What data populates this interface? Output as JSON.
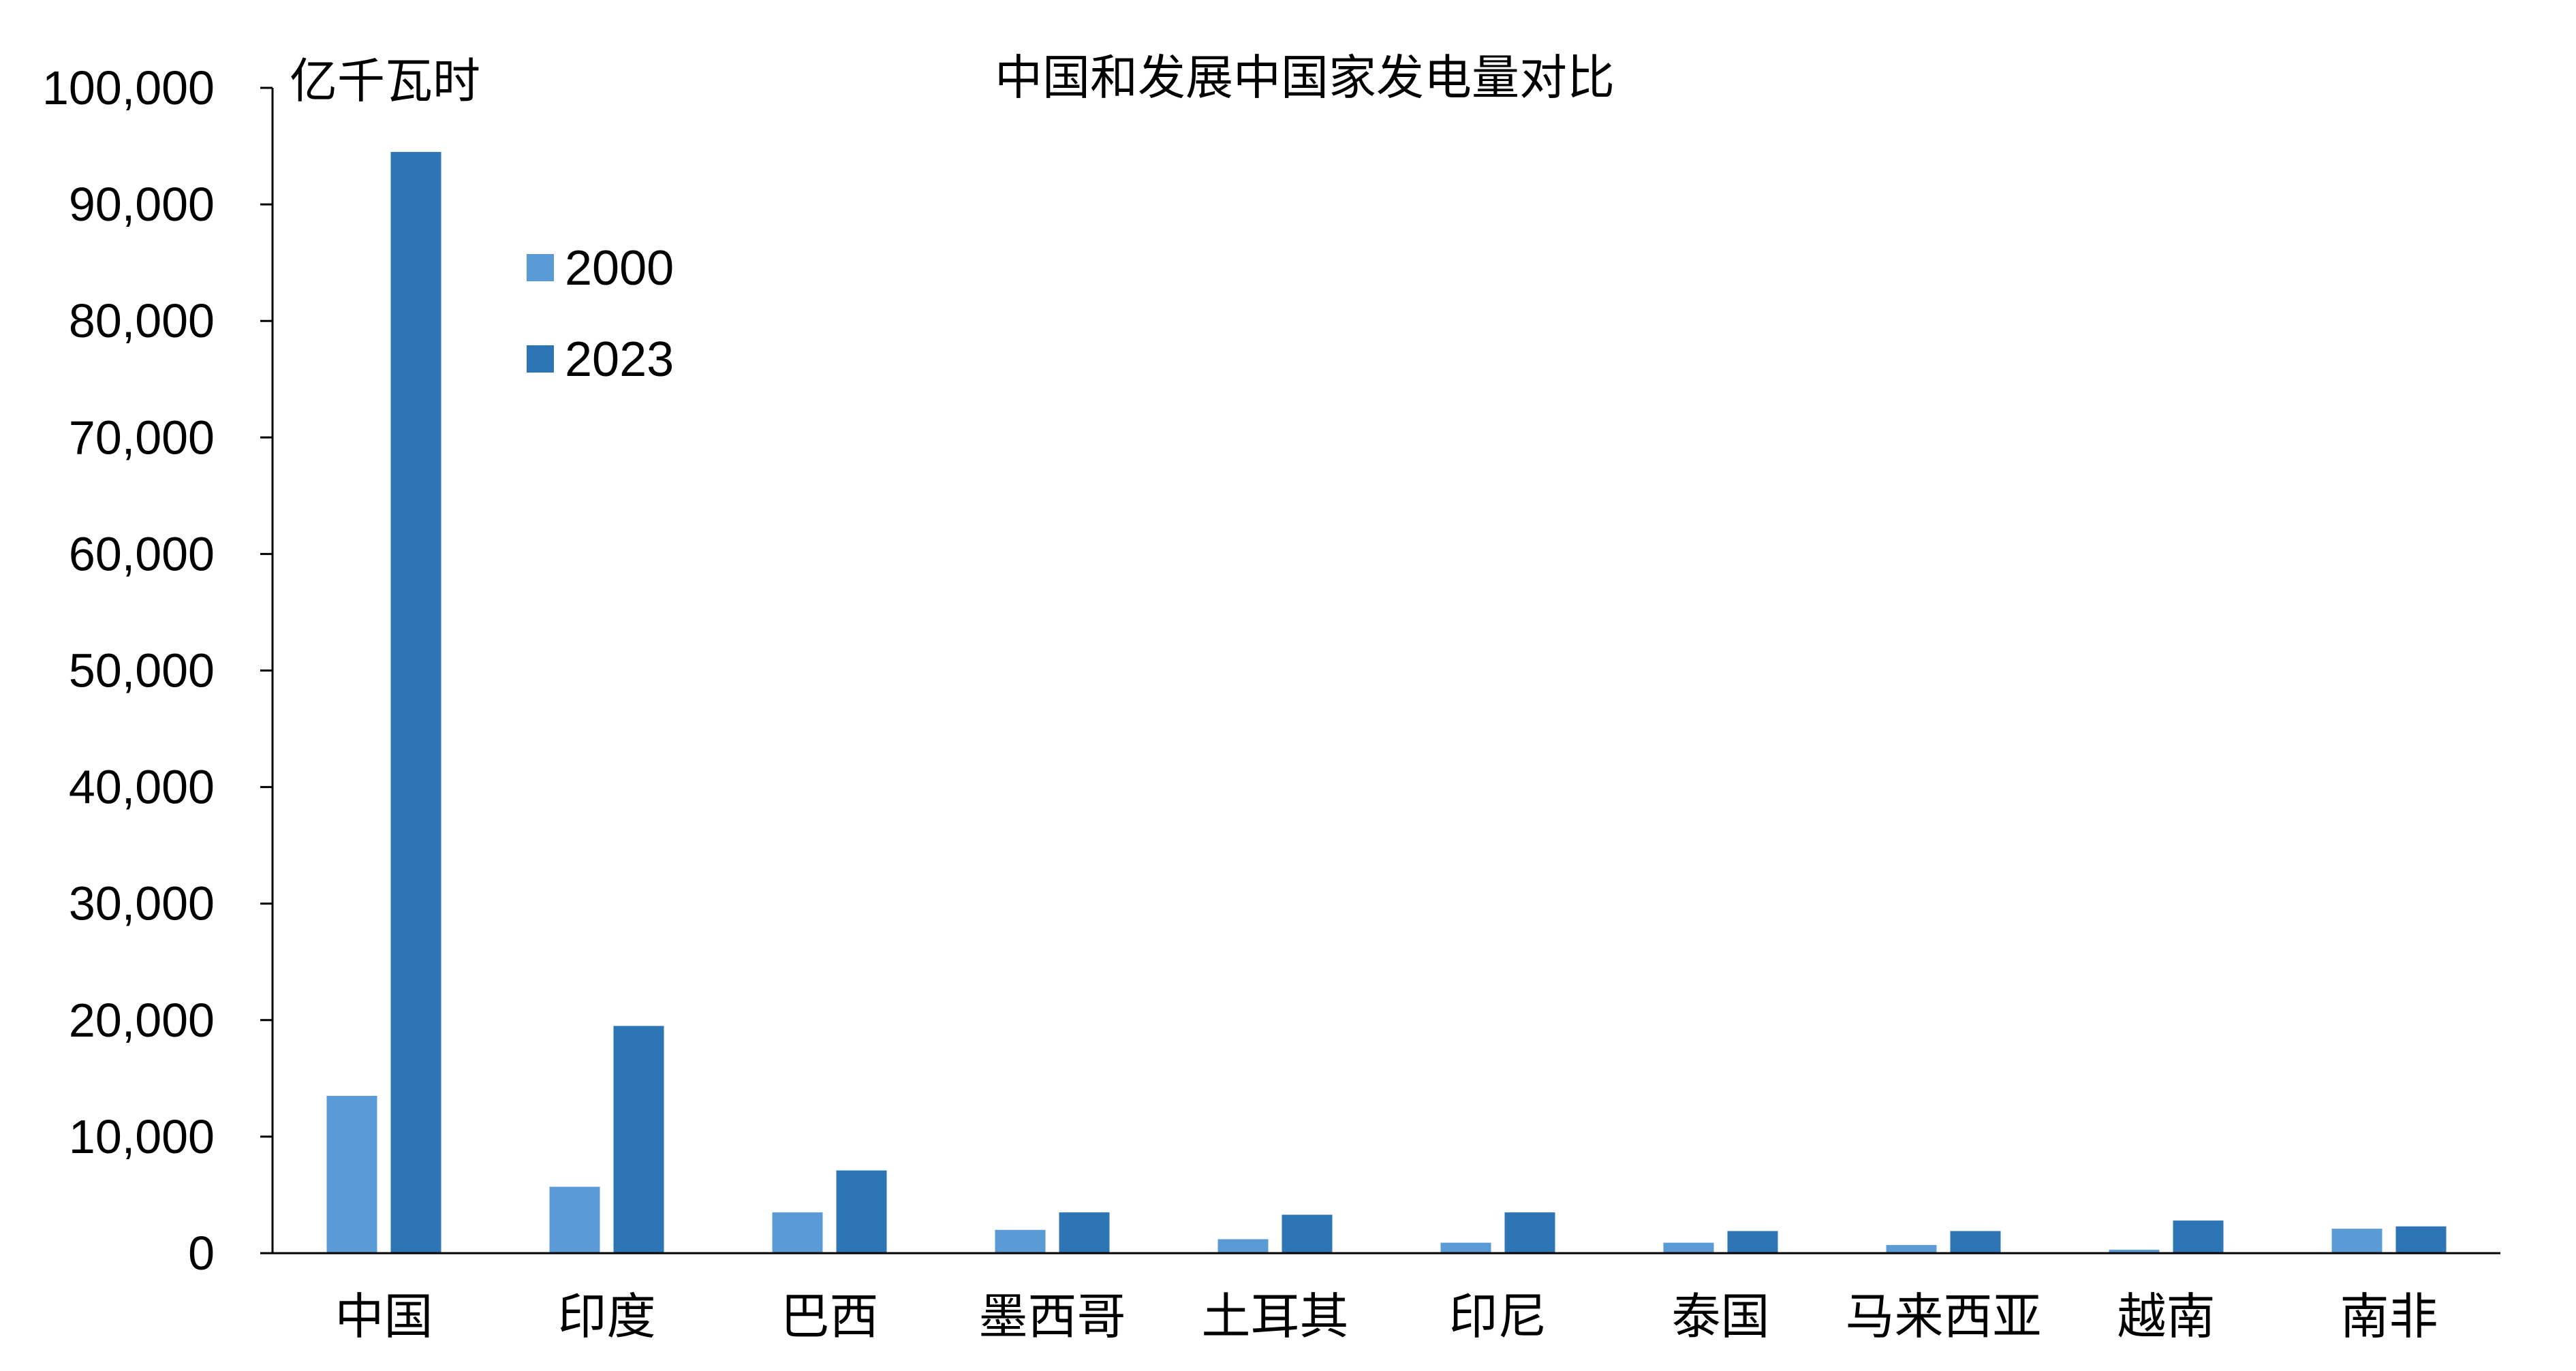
{
  "chart_data": {
    "type": "bar",
    "title": "中国和发展中国家发电量对比",
    "ylabel": "亿千瓦时",
    "xlabel": "",
    "categories": [
      "中国",
      "印度",
      "巴西",
      "墨西哥",
      "土耳其",
      "印尼",
      "泰国",
      "马来西亚",
      "越南",
      "南非"
    ],
    "series": [
      {
        "name": "2000",
        "color": "#5B9BD5",
        "values": [
          13500,
          5700,
          3500,
          2000,
          1200,
          900,
          900,
          700,
          300,
          2100
        ]
      },
      {
        "name": "2023",
        "color": "#2E75B6",
        "values": [
          94500,
          19500,
          7100,
          3500,
          3300,
          3500,
          1900,
          1900,
          2800,
          2300
        ]
      }
    ],
    "ylim": [
      0,
      100000
    ],
    "yticks": [
      "0",
      "10,000",
      "20,000",
      "30,000",
      "40,000",
      "50,000",
      "60,000",
      "70,000",
      "80,000",
      "90,000",
      "100,000"
    ],
    "grid": false,
    "legend_position": "top-left"
  }
}
